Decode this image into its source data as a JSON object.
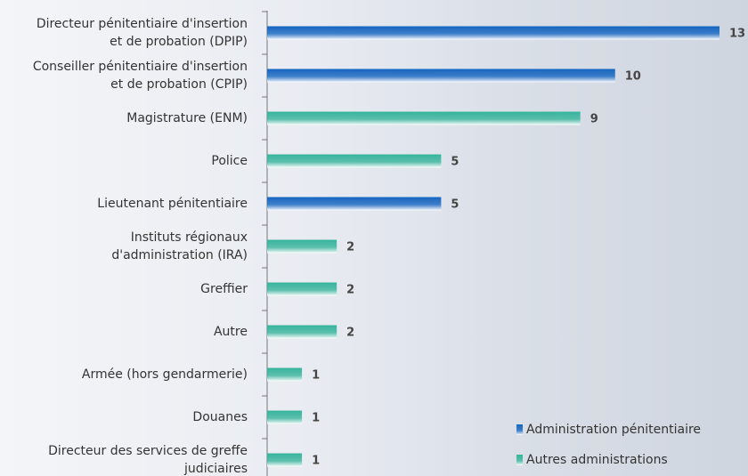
{
  "chart_data": {
    "type": "barh",
    "categories": [
      "Directeur pénitentiaire d'insertion\net de probation (DPIP)",
      "Conseiller pénitentiaire d'insertion\net de probation (CPIP)",
      "Magistrature (ENM)",
      "Police",
      "Lieutenant pénitentiaire",
      "Instituts régionaux\nd'administration (IRA)",
      "Greffier",
      "Autre",
      "Armée (hors gendarmerie)",
      "Douanes",
      "Directeur des services de greffe\njudiciaires"
    ],
    "series": [
      {
        "name": "Administration pénitentiaire",
        "color": "#1565c0",
        "values": [
          13,
          10,
          null,
          null,
          5,
          null,
          null,
          null,
          null,
          null,
          null
        ]
      },
      {
        "name": "Autres administrations",
        "color": "#36b49c",
        "values": [
          null,
          null,
          9,
          5,
          null,
          2,
          2,
          2,
          1,
          1,
          1
        ]
      }
    ],
    "legend": "bottom-right"
  }
}
